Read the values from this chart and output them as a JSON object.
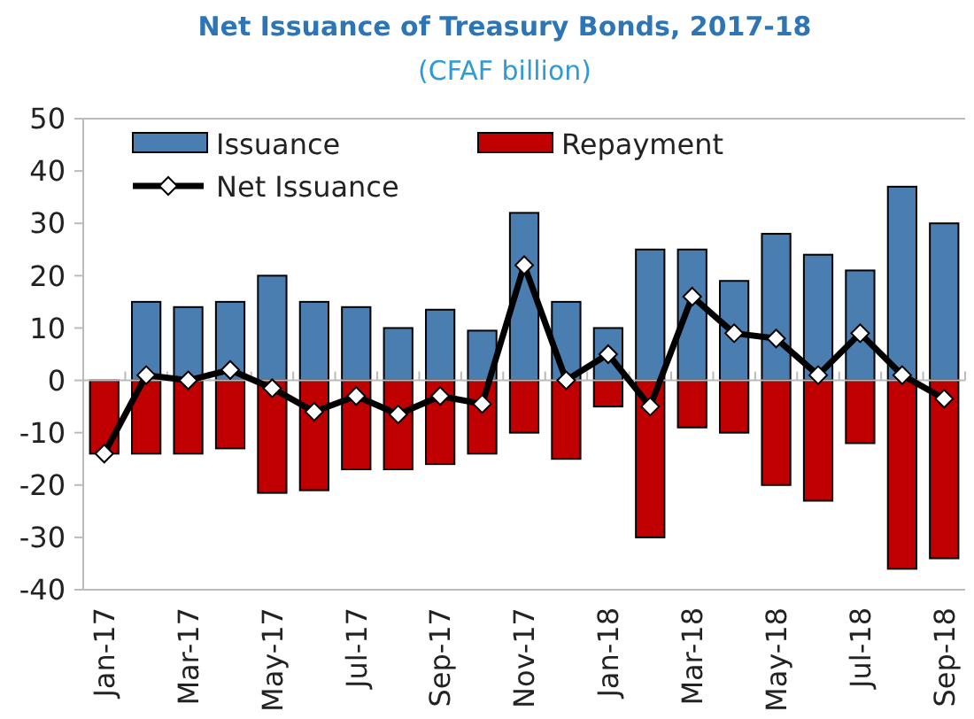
{
  "chart_data": {
    "type": "bar",
    "title": "Net Issuance of Treasury Bonds, 2017-18",
    "subtitle": "(CFAF billion)",
    "categories": [
      "Jan-17",
      null,
      "Mar-17",
      null,
      "May-17",
      null,
      "Jul-17",
      null,
      "Sep-17",
      null,
      "Nov-17",
      null,
      "Jan-18",
      null,
      "Mar-18",
      null,
      "May-18",
      null,
      "Jul-18",
      null,
      "Sep-18"
    ],
    "stacked": true,
    "series": [
      {
        "name": "Issuance",
        "color": "#4a7eb0",
        "values": [
          0,
          15,
          14,
          15,
          20,
          15,
          14,
          10,
          13.5,
          9.5,
          32,
          15,
          10,
          25,
          25,
          19,
          28,
          24,
          21,
          37,
          30
        ]
      },
      {
        "name": "Repayment",
        "color": "#c00000",
        "values": [
          -14,
          -14,
          -14,
          -13,
          -21.5,
          -21,
          -17,
          -17,
          -16,
          -14,
          -10,
          -15,
          -5,
          -30,
          -9,
          -10,
          -20,
          -23,
          -12,
          -36,
          -34
        ]
      },
      {
        "name": "Net Issuance",
        "type": "line",
        "color": "#000000",
        "marker": "diamond",
        "values": [
          -14,
          1,
          0,
          2,
          -1.5,
          -6,
          -3,
          -6.5,
          -3,
          -4.5,
          22,
          0,
          5,
          -5,
          16,
          9,
          8,
          1,
          9,
          1,
          -3.5
        ]
      }
    ],
    "ylim": [
      -40,
      50
    ],
    "yticks": [
      -40,
      -30,
      -20,
      -10,
      0,
      10,
      20,
      30,
      40,
      50
    ],
    "legend": "top left"
  }
}
